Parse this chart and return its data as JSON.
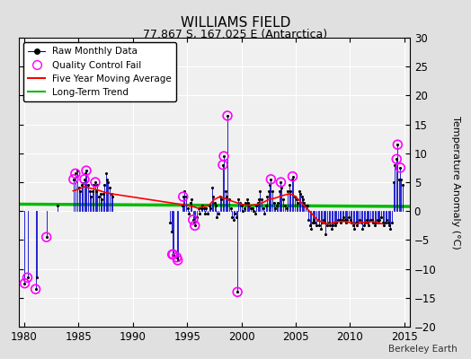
{
  "title": "WILLIAMS FIELD",
  "subtitle": "77.867 S, 167.025 E (Antarctica)",
  "ylabel": "Temperature Anomaly (°C)",
  "xlim": [
    1979.5,
    2015.5
  ],
  "ylim": [
    -20,
    30
  ],
  "yticks": [
    -20,
    -15,
    -10,
    -5,
    0,
    5,
    10,
    15,
    20,
    25,
    30
  ],
  "xticks": [
    1980,
    1985,
    1990,
    1995,
    2000,
    2005,
    2010,
    2015
  ],
  "background_color": "#e0e0e0",
  "plot_bg_color": "#f0f0f0",
  "grid_color": "#ffffff",
  "raw_color": "#0000cc",
  "qc_color": "#ff00ff",
  "moving_avg_color": "#ff0000",
  "trend_color": "#00bb00",
  "watermark": "Berkeley Earth",
  "raw_monthly_data": [
    [
      1980.04,
      -12.5
    ],
    [
      1980.29,
      -11.5
    ],
    [
      1981.04,
      -13.5
    ],
    [
      1981.13,
      -11.5
    ],
    [
      1982.04,
      -4.5
    ],
    [
      1983.04,
      1.0
    ],
    [
      1984.54,
      5.5
    ],
    [
      1984.71,
      6.5
    ],
    [
      1984.88,
      7.0
    ],
    [
      1985.04,
      4.0
    ],
    [
      1985.13,
      3.5
    ],
    [
      1985.29,
      4.5
    ],
    [
      1985.38,
      4.8
    ],
    [
      1985.54,
      5.5
    ],
    [
      1985.63,
      6.5
    ],
    [
      1985.71,
      7.0
    ],
    [
      1985.88,
      4.5
    ],
    [
      1986.04,
      3.5
    ],
    [
      1986.13,
      2.5
    ],
    [
      1986.29,
      3.5
    ],
    [
      1986.38,
      4.5
    ],
    [
      1986.54,
      5.0
    ],
    [
      1986.63,
      3.5
    ],
    [
      1986.71,
      4.5
    ],
    [
      1986.88,
      2.5
    ],
    [
      1987.04,
      3.0
    ],
    [
      1987.13,
      2.0
    ],
    [
      1987.29,
      3.0
    ],
    [
      1987.38,
      4.5
    ],
    [
      1987.54,
      6.5
    ],
    [
      1987.63,
      5.5
    ],
    [
      1987.71,
      5.0
    ],
    [
      1987.88,
      4.0
    ],
    [
      1988.04,
      3.0
    ],
    [
      1988.13,
      2.5
    ],
    [
      1993.38,
      -2.0
    ],
    [
      1993.54,
      -3.5
    ],
    [
      1993.63,
      -7.5
    ],
    [
      1993.71,
      -7.5
    ],
    [
      1994.04,
      -8.0
    ],
    [
      1994.13,
      -8.5
    ],
    [
      1994.54,
      1.0
    ],
    [
      1994.63,
      2.5
    ],
    [
      1994.71,
      3.5
    ],
    [
      1994.88,
      2.5
    ],
    [
      1995.04,
      0.5
    ],
    [
      1995.13,
      -0.5
    ],
    [
      1995.29,
      1.5
    ],
    [
      1995.38,
      2.0
    ],
    [
      1995.54,
      -1.5
    ],
    [
      1995.63,
      -2.0
    ],
    [
      1995.71,
      -2.5
    ],
    [
      1995.88,
      -1.0
    ],
    [
      1996.04,
      0.5
    ],
    [
      1996.13,
      -0.5
    ],
    [
      1996.29,
      0.5
    ],
    [
      1996.38,
      1.0
    ],
    [
      1996.54,
      0.5
    ],
    [
      1996.63,
      -0.5
    ],
    [
      1996.71,
      0.5
    ],
    [
      1996.88,
      -0.5
    ],
    [
      1997.04,
      1.0
    ],
    [
      1997.13,
      0.5
    ],
    [
      1997.29,
      4.0
    ],
    [
      1997.38,
      2.5
    ],
    [
      1997.54,
      1.5
    ],
    [
      1997.63,
      1.0
    ],
    [
      1997.71,
      -1.0
    ],
    [
      1997.88,
      -0.5
    ],
    [
      1998.04,
      2.5
    ],
    [
      1998.13,
      2.0
    ],
    [
      1998.29,
      8.0
    ],
    [
      1998.38,
      9.5
    ],
    [
      1998.54,
      3.5
    ],
    [
      1998.63,
      2.5
    ],
    [
      1998.71,
      16.5
    ],
    [
      1998.88,
      2.0
    ],
    [
      1999.04,
      0.5
    ],
    [
      1999.13,
      -1.0
    ],
    [
      1999.29,
      -1.5
    ],
    [
      1999.38,
      -0.5
    ],
    [
      1999.54,
      -1.0
    ],
    [
      1999.63,
      -14.0
    ],
    [
      1999.71,
      2.0
    ],
    [
      1999.88,
      1.5
    ],
    [
      2000.04,
      1.0
    ],
    [
      2000.13,
      0.0
    ],
    [
      2000.29,
      0.5
    ],
    [
      2000.38,
      1.5
    ],
    [
      2000.54,
      2.0
    ],
    [
      2000.63,
      1.5
    ],
    [
      2000.71,
      1.0
    ],
    [
      2000.88,
      0.5
    ],
    [
      2001.04,
      0.5
    ],
    [
      2001.13,
      0.0
    ],
    [
      2001.29,
      -0.5
    ],
    [
      2001.38,
      1.0
    ],
    [
      2001.54,
      1.5
    ],
    [
      2001.63,
      2.0
    ],
    [
      2001.71,
      3.5
    ],
    [
      2001.88,
      2.0
    ],
    [
      2002.04,
      0.5
    ],
    [
      2002.13,
      -0.5
    ],
    [
      2002.29,
      1.0
    ],
    [
      2002.38,
      2.5
    ],
    [
      2002.54,
      3.5
    ],
    [
      2002.63,
      4.5
    ],
    [
      2002.71,
      5.5
    ],
    [
      2002.88,
      3.5
    ],
    [
      2003.04,
      1.5
    ],
    [
      2003.13,
      0.5
    ],
    [
      2003.29,
      1.0
    ],
    [
      2003.38,
      1.5
    ],
    [
      2003.54,
      3.5
    ],
    [
      2003.63,
      5.0
    ],
    [
      2003.71,
      4.0
    ],
    [
      2003.88,
      2.0
    ],
    [
      2004.04,
      1.0
    ],
    [
      2004.13,
      0.5
    ],
    [
      2004.29,
      3.5
    ],
    [
      2004.38,
      4.5
    ],
    [
      2004.54,
      3.5
    ],
    [
      2004.63,
      5.5
    ],
    [
      2004.71,
      6.0
    ],
    [
      2004.88,
      2.5
    ],
    [
      2005.04,
      2.0
    ],
    [
      2005.13,
      1.5
    ],
    [
      2005.29,
      3.5
    ],
    [
      2005.38,
      3.0
    ],
    [
      2005.54,
      2.5
    ],
    [
      2005.63,
      2.0
    ],
    [
      2005.71,
      1.5
    ],
    [
      2005.88,
      1.0
    ],
    [
      2006.04,
      1.0
    ],
    [
      2006.13,
      -1.5
    ],
    [
      2006.29,
      -2.5
    ],
    [
      2006.38,
      -3.0
    ],
    [
      2006.54,
      -2.0
    ],
    [
      2006.63,
      -1.5
    ],
    [
      2006.71,
      -2.0
    ],
    [
      2006.88,
      -2.5
    ],
    [
      2007.04,
      -1.5
    ],
    [
      2007.13,
      -2.5
    ],
    [
      2007.29,
      -3.0
    ],
    [
      2007.38,
      -2.0
    ],
    [
      2007.54,
      -1.5
    ],
    [
      2007.63,
      -2.0
    ],
    [
      2007.71,
      -4.0
    ],
    [
      2007.88,
      -2.5
    ],
    [
      2008.04,
      -2.0
    ],
    [
      2008.13,
      -2.5
    ],
    [
      2008.29,
      -3.0
    ],
    [
      2008.38,
      -2.5
    ],
    [
      2008.54,
      -2.0
    ],
    [
      2008.63,
      -2.5
    ],
    [
      2008.71,
      -2.0
    ],
    [
      2008.88,
      -1.5
    ],
    [
      2009.04,
      -1.5
    ],
    [
      2009.13,
      -2.0
    ],
    [
      2009.29,
      -1.5
    ],
    [
      2009.38,
      -1.0
    ],
    [
      2009.54,
      -1.5
    ],
    [
      2009.63,
      -2.0
    ],
    [
      2009.71,
      -1.5
    ],
    [
      2009.88,
      -1.0
    ],
    [
      2010.04,
      -1.5
    ],
    [
      2010.13,
      -2.0
    ],
    [
      2010.29,
      -2.5
    ],
    [
      2010.38,
      -3.0
    ],
    [
      2010.54,
      -2.0
    ],
    [
      2010.63,
      -2.5
    ],
    [
      2010.71,
      -2.0
    ],
    [
      2010.88,
      -1.5
    ],
    [
      2011.04,
      -2.0
    ],
    [
      2011.13,
      -3.0
    ],
    [
      2011.29,
      -2.5
    ],
    [
      2011.38,
      -2.0
    ],
    [
      2011.54,
      -1.5
    ],
    [
      2011.63,
      -2.0
    ],
    [
      2011.71,
      -2.5
    ],
    [
      2011.88,
      -1.5
    ],
    [
      2012.04,
      -1.5
    ],
    [
      2012.13,
      -2.0
    ],
    [
      2012.29,
      -2.5
    ],
    [
      2012.38,
      -2.0
    ],
    [
      2012.54,
      -1.5
    ],
    [
      2012.63,
      -2.0
    ],
    [
      2012.71,
      -1.5
    ],
    [
      2012.88,
      -1.0
    ],
    [
      2013.04,
      -2.0
    ],
    [
      2013.13,
      -2.5
    ],
    [
      2013.29,
      -2.0
    ],
    [
      2013.38,
      -1.5
    ],
    [
      2013.54,
      -2.0
    ],
    [
      2013.63,
      -2.5
    ],
    [
      2013.71,
      -3.0
    ],
    [
      2013.88,
      -2.0
    ],
    [
      2014.04,
      5.0
    ],
    [
      2014.13,
      8.0
    ],
    [
      2014.29,
      9.0
    ],
    [
      2014.38,
      11.5
    ],
    [
      2014.54,
      5.5
    ],
    [
      2014.63,
      7.5
    ],
    [
      2014.71,
      5.5
    ],
    [
      2014.88,
      4.5
    ]
  ],
  "qc_fail_data": [
    [
      1980.04,
      -12.5
    ],
    [
      1980.29,
      -11.5
    ],
    [
      1981.04,
      -13.5
    ],
    [
      1982.04,
      -4.5
    ],
    [
      1984.54,
      5.5
    ],
    [
      1984.71,
      6.5
    ],
    [
      1985.54,
      5.5
    ],
    [
      1985.71,
      7.0
    ],
    [
      1986.54,
      5.0
    ],
    [
      1993.63,
      -7.5
    ],
    [
      1993.71,
      -7.5
    ],
    [
      1994.04,
      -8.0
    ],
    [
      1994.13,
      -8.5
    ],
    [
      1994.63,
      2.5
    ],
    [
      1995.54,
      -1.5
    ],
    [
      1995.71,
      -2.5
    ],
    [
      1998.29,
      8.0
    ],
    [
      1998.38,
      9.5
    ],
    [
      1998.71,
      16.5
    ],
    [
      1999.63,
      -14.0
    ],
    [
      2002.71,
      5.5
    ],
    [
      2003.63,
      5.0
    ],
    [
      2004.71,
      6.0
    ],
    [
      2014.29,
      9.0
    ],
    [
      2014.38,
      11.5
    ],
    [
      2014.63,
      7.5
    ]
  ],
  "moving_avg": [
    [
      1984.5,
      3.5
    ],
    [
      1985.0,
      3.8
    ],
    [
      1985.5,
      4.2
    ],
    [
      1986.0,
      4.0
    ],
    [
      1986.5,
      3.8
    ],
    [
      1987.0,
      3.5
    ],
    [
      1987.5,
      3.2
    ],
    [
      1988.0,
      3.0
    ],
    [
      1995.0,
      1.0
    ],
    [
      1995.5,
      0.8
    ],
    [
      1996.0,
      0.5
    ],
    [
      1996.5,
      0.8
    ],
    [
      1997.0,
      1.0
    ],
    [
      1997.5,
      2.0
    ],
    [
      1998.0,
      2.5
    ],
    [
      1998.5,
      2.2
    ],
    [
      1999.0,
      1.8
    ],
    [
      1999.5,
      1.5
    ],
    [
      2000.0,
      1.2
    ],
    [
      2000.5,
      1.0
    ],
    [
      2001.0,
      1.0
    ],
    [
      2001.5,
      1.2
    ],
    [
      2002.0,
      1.5
    ],
    [
      2002.5,
      2.0
    ],
    [
      2003.0,
      2.2
    ],
    [
      2003.5,
      2.5
    ],
    [
      2004.0,
      2.8
    ],
    [
      2004.5,
      3.0
    ],
    [
      2005.0,
      2.5
    ],
    [
      2005.5,
      1.5
    ],
    [
      2006.0,
      0.5
    ],
    [
      2006.5,
      -0.5
    ],
    [
      2007.0,
      -1.5
    ],
    [
      2007.5,
      -2.0
    ],
    [
      2008.0,
      -2.2
    ],
    [
      2008.5,
      -2.0
    ],
    [
      2009.0,
      -1.8
    ],
    [
      2009.5,
      -1.8
    ],
    [
      2010.0,
      -2.0
    ],
    [
      2010.5,
      -2.2
    ],
    [
      2011.0,
      -2.0
    ],
    [
      2011.5,
      -2.0
    ],
    [
      2012.0,
      -1.8
    ],
    [
      2012.5,
      -2.0
    ],
    [
      2013.0,
      -2.2
    ]
  ],
  "trend_x": [
    1979.5,
    2015.5
  ],
  "trend_y": [
    1.2,
    0.8
  ]
}
